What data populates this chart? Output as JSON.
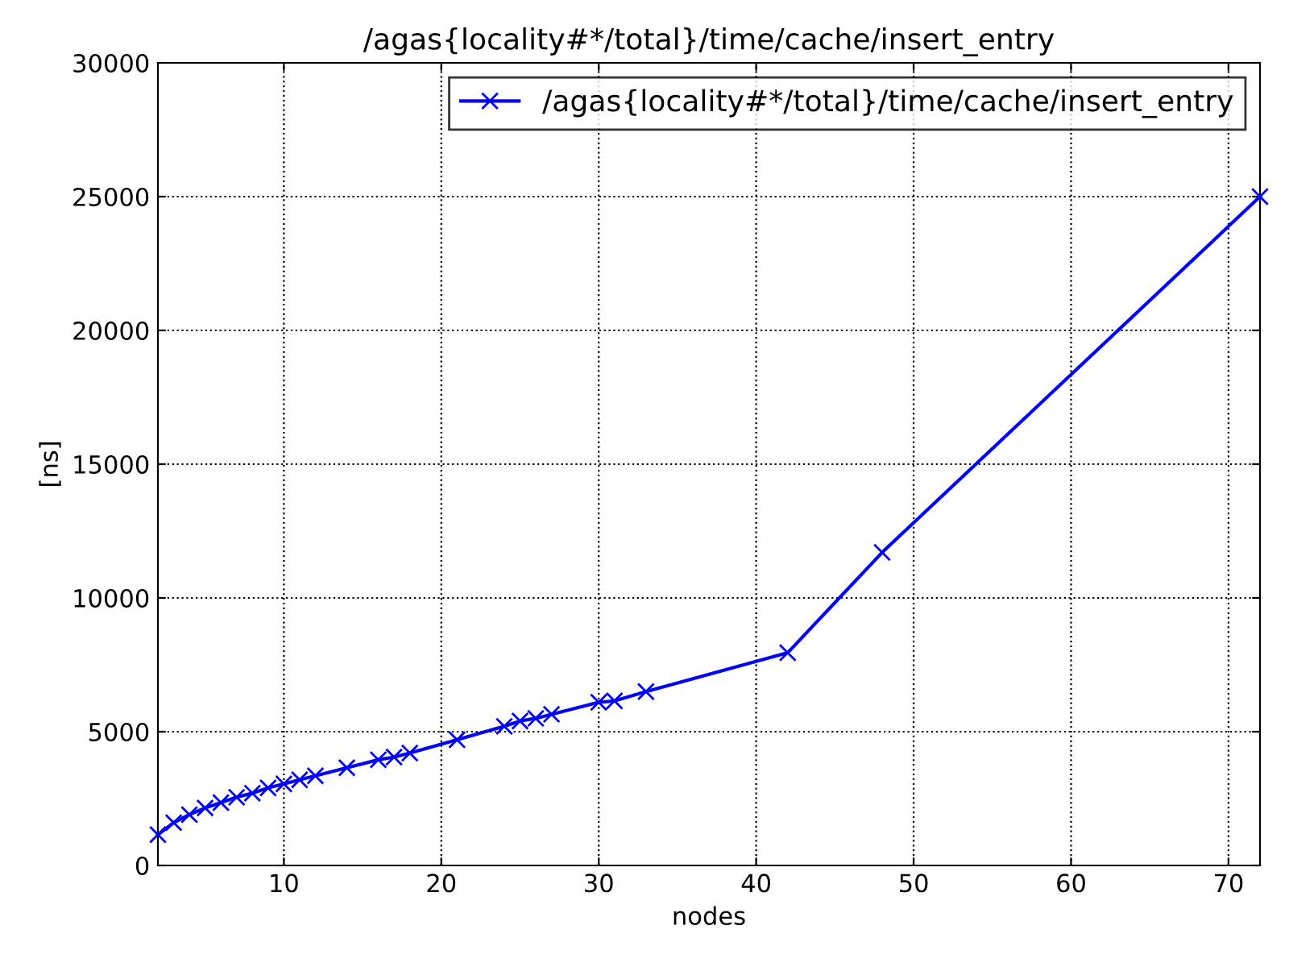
{
  "chart_data": {
    "type": "line",
    "title": "/agas{locality#*/total}/time/cache/insert_entry",
    "xlabel": "nodes",
    "ylabel": "[ns]",
    "series": [
      {
        "name": "/agas{locality#*/total}/time/cache/insert_entry",
        "color": "#0000ff",
        "x": [
          2,
          3,
          4,
          5,
          6,
          7,
          8,
          9,
          10,
          11,
          12,
          14,
          16,
          17,
          18,
          21,
          24,
          25,
          26,
          27,
          30,
          31,
          33,
          42,
          48,
          72
        ],
        "values": [
          1150,
          1600,
          1900,
          2150,
          2350,
          2550,
          2700,
          2900,
          3050,
          3200,
          3350,
          3650,
          3950,
          4050,
          4200,
          4700,
          5200,
          5400,
          5500,
          5650,
          6100,
          6150,
          6500,
          7950,
          11700,
          25000
        ]
      }
    ],
    "xlim": [
      2,
      72
    ],
    "ylim": [
      0,
      30000
    ],
    "xticks": [
      10,
      20,
      30,
      40,
      50,
      60,
      70
    ],
    "yticks": [
      0,
      5000,
      10000,
      15000,
      20000,
      25000,
      30000
    ],
    "grid": true,
    "legend": "top right",
    "marker": "cross",
    "line_style": "solid"
  }
}
